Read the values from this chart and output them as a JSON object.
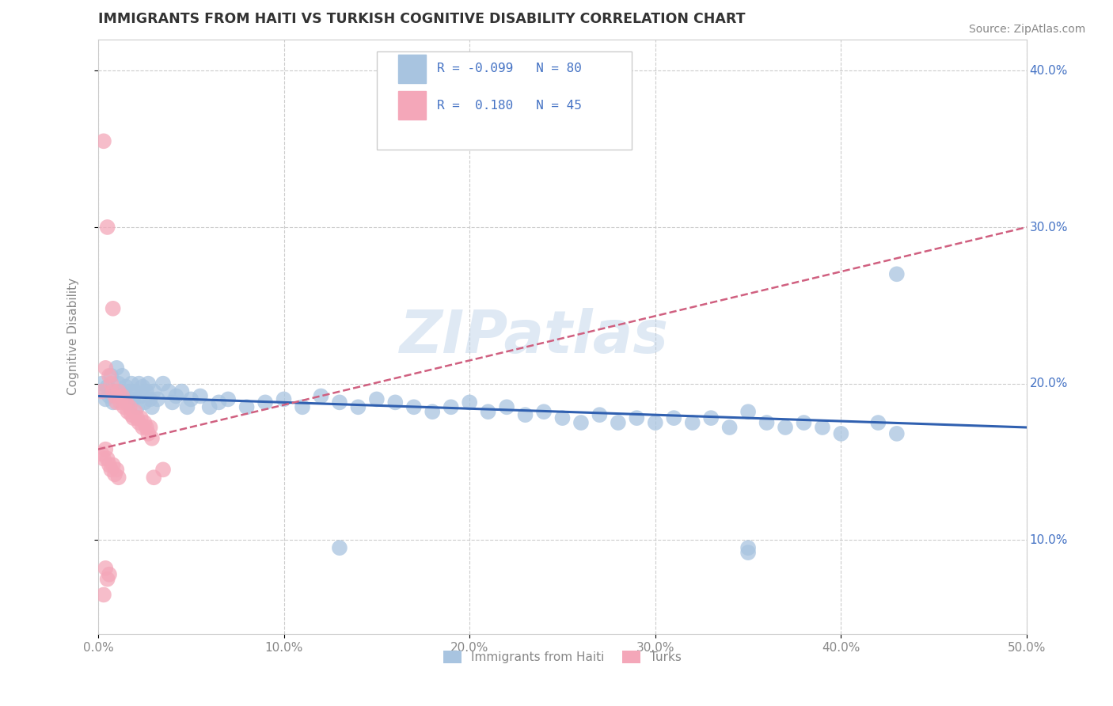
{
  "title": "IMMIGRANTS FROM HAITI VS TURKISH COGNITIVE DISABILITY CORRELATION CHART",
  "source": "Source: ZipAtlas.com",
  "ylabel": "Cognitive Disability",
  "watermark": "ZIPatlas",
  "xlim": [
    0.0,
    0.5
  ],
  "ylim": [
    0.04,
    0.42
  ],
  "xticks": [
    0.0,
    0.1,
    0.2,
    0.3,
    0.4,
    0.5
  ],
  "xtick_labels": [
    "0.0%",
    "10.0%",
    "20.0%",
    "30.0%",
    "40.0%",
    "50.0%"
  ],
  "yticks": [
    0.1,
    0.2,
    0.3,
    0.4
  ],
  "ytick_labels": [
    "10.0%",
    "20.0%",
    "30.0%",
    "40.0%"
  ],
  "haiti_R": -0.099,
  "haiti_N": 80,
  "turks_R": 0.18,
  "turks_N": 45,
  "haiti_color": "#a8c4e0",
  "turks_color": "#f4a7b9",
  "haiti_line_color": "#3060b0",
  "turks_line_color": "#d06080",
  "haiti_line_start": 0.192,
  "haiti_line_end": 0.172,
  "turks_line_start": 0.158,
  "turks_line_end": 0.3,
  "haiti_scatter": [
    [
      0.002,
      0.2
    ],
    [
      0.003,
      0.195
    ],
    [
      0.004,
      0.19
    ],
    [
      0.005,
      0.198
    ],
    [
      0.006,
      0.192
    ],
    [
      0.007,
      0.205
    ],
    [
      0.008,
      0.188
    ],
    [
      0.009,
      0.195
    ],
    [
      0.01,
      0.21
    ],
    [
      0.011,
      0.2
    ],
    [
      0.012,
      0.195
    ],
    [
      0.013,
      0.205
    ],
    [
      0.014,
      0.192
    ],
    [
      0.015,
      0.198
    ],
    [
      0.016,
      0.188
    ],
    [
      0.017,
      0.195
    ],
    [
      0.018,
      0.2
    ],
    [
      0.019,
      0.19
    ],
    [
      0.02,
      0.195
    ],
    [
      0.021,
      0.185
    ],
    [
      0.022,
      0.2
    ],
    [
      0.023,
      0.192
    ],
    [
      0.024,
      0.198
    ],
    [
      0.025,
      0.188
    ],
    [
      0.026,
      0.195
    ],
    [
      0.027,
      0.2
    ],
    [
      0.028,
      0.19
    ],
    [
      0.029,
      0.185
    ],
    [
      0.03,
      0.195
    ],
    [
      0.032,
      0.19
    ],
    [
      0.035,
      0.2
    ],
    [
      0.038,
      0.195
    ],
    [
      0.04,
      0.188
    ],
    [
      0.042,
      0.192
    ],
    [
      0.045,
      0.195
    ],
    [
      0.048,
      0.185
    ],
    [
      0.05,
      0.19
    ],
    [
      0.055,
      0.192
    ],
    [
      0.06,
      0.185
    ],
    [
      0.065,
      0.188
    ],
    [
      0.07,
      0.19
    ],
    [
      0.08,
      0.185
    ],
    [
      0.09,
      0.188
    ],
    [
      0.1,
      0.19
    ],
    [
      0.11,
      0.185
    ],
    [
      0.12,
      0.192
    ],
    [
      0.13,
      0.188
    ],
    [
      0.14,
      0.185
    ],
    [
      0.15,
      0.19
    ],
    [
      0.16,
      0.188
    ],
    [
      0.17,
      0.185
    ],
    [
      0.18,
      0.182
    ],
    [
      0.19,
      0.185
    ],
    [
      0.2,
      0.188
    ],
    [
      0.21,
      0.182
    ],
    [
      0.22,
      0.185
    ],
    [
      0.23,
      0.18
    ],
    [
      0.24,
      0.182
    ],
    [
      0.25,
      0.178
    ],
    [
      0.26,
      0.175
    ],
    [
      0.27,
      0.18
    ],
    [
      0.28,
      0.175
    ],
    [
      0.29,
      0.178
    ],
    [
      0.3,
      0.175
    ],
    [
      0.31,
      0.178
    ],
    [
      0.32,
      0.175
    ],
    [
      0.33,
      0.178
    ],
    [
      0.34,
      0.172
    ],
    [
      0.35,
      0.092
    ],
    [
      0.35,
      0.182
    ],
    [
      0.36,
      0.175
    ],
    [
      0.37,
      0.172
    ],
    [
      0.38,
      0.175
    ],
    [
      0.39,
      0.172
    ],
    [
      0.4,
      0.168
    ],
    [
      0.13,
      0.095
    ],
    [
      0.35,
      0.095
    ],
    [
      0.43,
      0.27
    ],
    [
      0.42,
      0.175
    ],
    [
      0.43,
      0.168
    ]
  ],
  "turks_scatter": [
    [
      0.003,
      0.355
    ],
    [
      0.005,
      0.3
    ],
    [
      0.008,
      0.248
    ],
    [
      0.002,
      0.195
    ],
    [
      0.004,
      0.21
    ],
    [
      0.006,
      0.205
    ],
    [
      0.007,
      0.2
    ],
    [
      0.008,
      0.195
    ],
    [
      0.009,
      0.192
    ],
    [
      0.01,
      0.188
    ],
    [
      0.011,
      0.195
    ],
    [
      0.012,
      0.188
    ],
    [
      0.013,
      0.192
    ],
    [
      0.014,
      0.185
    ],
    [
      0.015,
      0.188
    ],
    [
      0.016,
      0.182
    ],
    [
      0.017,
      0.185
    ],
    [
      0.018,
      0.18
    ],
    [
      0.019,
      0.178
    ],
    [
      0.02,
      0.182
    ],
    [
      0.021,
      0.178
    ],
    [
      0.022,
      0.175
    ],
    [
      0.023,
      0.178
    ],
    [
      0.024,
      0.172
    ],
    [
      0.025,
      0.175
    ],
    [
      0.026,
      0.172
    ],
    [
      0.027,
      0.168
    ],
    [
      0.028,
      0.172
    ],
    [
      0.029,
      0.165
    ],
    [
      0.002,
      0.155
    ],
    [
      0.003,
      0.152
    ],
    [
      0.004,
      0.158
    ],
    [
      0.005,
      0.152
    ],
    [
      0.006,
      0.148
    ],
    [
      0.007,
      0.145
    ],
    [
      0.008,
      0.148
    ],
    [
      0.009,
      0.142
    ],
    [
      0.01,
      0.145
    ],
    [
      0.011,
      0.14
    ],
    [
      0.004,
      0.082
    ],
    [
      0.005,
      0.075
    ],
    [
      0.006,
      0.078
    ],
    [
      0.003,
      0.065
    ],
    [
      0.03,
      0.14
    ],
    [
      0.035,
      0.145
    ]
  ],
  "legend_items": [
    {
      "label": "Immigrants from Haiti",
      "color": "#a8c4e0"
    },
    {
      "label": "Turks",
      "color": "#f4a7b9"
    }
  ],
  "background_color": "#ffffff",
  "grid_color": "#cccccc",
  "title_color": "#333333",
  "axis_color": "#888888",
  "yaxis_label_color": "#4472c4",
  "legend_text_color": "#4472c4"
}
